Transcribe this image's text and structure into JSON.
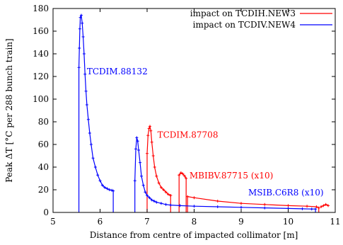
{
  "chart_data": {
    "type": "line",
    "xlabel": "Distance from centre of impacted collimator [m]",
    "ylabel": "Peak ΔT [°C per 288 bunch train]",
    "xlim": [
      5,
      11
    ],
    "ylim": [
      0,
      180
    ],
    "xticks": [
      "5",
      "6",
      "7",
      "8",
      "9",
      "10",
      "11"
    ],
    "yticks": [
      "0",
      "20",
      "40",
      "60",
      "80",
      "100",
      "120",
      "140",
      "160",
      "180"
    ],
    "grid": false,
    "legend_position": "top-right",
    "legend": [
      {
        "label": "impact on TCDIH.NEW3",
        "color": "#ff0000"
      },
      {
        "label": "impact on TCDIV.NEW4",
        "color": "#0000ff"
      }
    ],
    "series": [
      {
        "name": "impact on TCDIH.NEW3",
        "color": "#ff0000",
        "segments": [
          {
            "x": [
              7.0,
              7.0,
              7.02,
              7.04,
              7.06,
              7.08,
              7.1,
              7.13,
              7.16,
              7.2,
              7.25,
              7.3,
              7.35,
              7.4,
              7.45,
              7.5
            ],
            "y": [
              0,
              52,
              68,
              74,
              76,
              72,
              62,
              50,
              40,
              32,
              26,
              22,
              20,
              18,
              16,
              15
            ]
          },
          {
            "x": [
              7.5,
              7.5
            ],
            "y": [
              15,
              0
            ]
          },
          {
            "x": [
              7.68,
              7.68,
              7.72,
              7.76,
              7.8,
              7.83,
              7.83
            ],
            "y": [
              0,
              33,
              35,
              34,
              32,
              30,
              0
            ]
          },
          {
            "x": [
              7.86,
              7.86,
              8.0,
              8.5,
              9.0,
              9.5,
              10.0,
              10.4,
              10.6,
              10.65,
              10.65
            ],
            "y": [
              0,
              14,
              13,
              10,
              8,
              7,
              6,
              5.5,
              5,
              4,
              0
            ]
          },
          {
            "x": [
              10.7,
              10.75,
              10.8,
              10.85
            ],
            "y": [
              5,
              6,
              7,
              6
            ]
          }
        ]
      },
      {
        "name": "impact on TCDIV.NEW4",
        "color": "#0000ff",
        "segments": [
          {
            "x": [
              5.55,
              5.55,
              5.56,
              5.57,
              5.58,
              5.6,
              5.62,
              5.64,
              5.66,
              5.68,
              5.7,
              5.72,
              5.75,
              5.78,
              5.81,
              5.85,
              5.9,
              5.95,
              6.0,
              6.05,
              6.1,
              6.15,
              6.2,
              6.25,
              6.28,
              6.28
            ],
            "y": [
              0,
              128,
              145,
              162,
              172,
              174,
              167,
              155,
              140,
              122,
              107,
              95,
              82,
              70,
              60,
              48,
              40,
              33,
              28,
              24,
              22,
              21,
              20,
              19.5,
              19,
              0
            ]
          },
          {
            "x": [
              6.74,
              6.74,
              6.76,
              6.78,
              6.8,
              6.82,
              6.85,
              6.88,
              6.92,
              6.96,
              7.0,
              7.05,
              7.1,
              7.15,
              7.2,
              7.3,
              7.4,
              7.5,
              7.7,
              8.0,
              8.5,
              9.0,
              9.5,
              10.0,
              10.3,
              10.5,
              10.58,
              10.58
            ],
            "y": [
              0,
              28,
              56,
              66,
              63,
              55,
              44,
              32,
              24,
              18,
              15,
              13,
              11,
              10,
              9,
              8,
              7,
              6.5,
              6,
              5.5,
              5,
              4.5,
              4,
              3.5,
              3.2,
              3,
              3,
              0
            ]
          }
        ]
      }
    ],
    "annotations": [
      {
        "text": "TCDIM.88132",
        "color": "#0000ff",
        "x": 5.72,
        "y": 122
      },
      {
        "text": "TCDIM.87708",
        "color": "#ff0000",
        "x": 7.22,
        "y": 66
      },
      {
        "text": "MBIBV.87715 (x10)",
        "color": "#ff0000",
        "x": 7.9,
        "y": 30
      },
      {
        "text": "MSIB.C6R8 (x10)",
        "color": "#0000ff",
        "x": 9.15,
        "y": 15
      }
    ]
  }
}
